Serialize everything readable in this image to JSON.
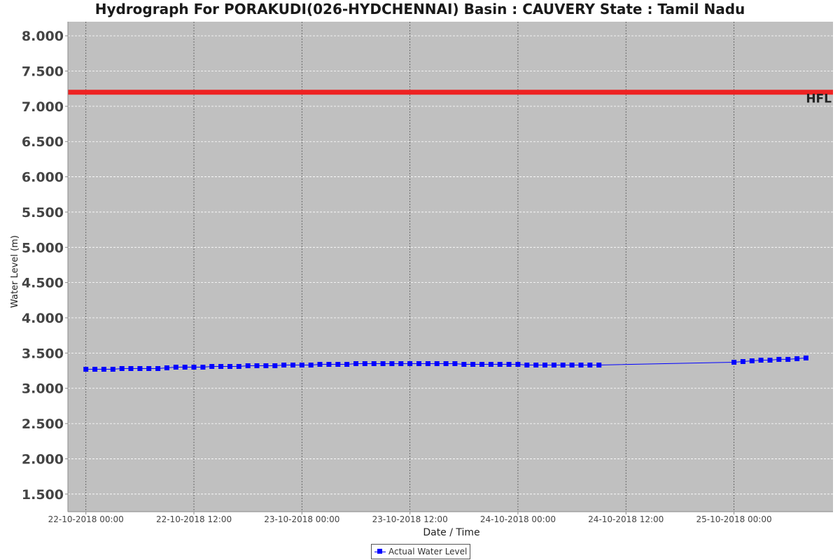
{
  "chart_data": {
    "type": "line",
    "title": "Hydrograph For PORAKUDI(026-HYDCHENNAI) Basin : CAUVERY State : Tamil Nadu",
    "xlabel": "Date / Time",
    "ylabel": "Water Level (m)",
    "ylim": [
      1.25,
      8.2
    ],
    "yticks": [
      "1.500",
      "2.000",
      "2.500",
      "3.000",
      "3.500",
      "4.000",
      "4.500",
      "5.000",
      "5.500",
      "6.000",
      "6.500",
      "7.000",
      "7.500",
      "8.000"
    ],
    "xticks": [
      "22-10-2018 00:00",
      "22-10-2018 12:00",
      "23-10-2018 00:00",
      "23-10-2018 12:00",
      "24-10-2018 00:00",
      "24-10-2018 12:00",
      "25-10-2018 00:00"
    ],
    "xlim": [
      "21-10-2018 22:00",
      "25-10-2018 11:00"
    ],
    "grid": true,
    "legend_position": "bottom",
    "hfl": {
      "label": "HFL",
      "value": 7.2,
      "color": "#ee2222"
    },
    "series": [
      {
        "name": "Actual Water Level",
        "color": "#0000ff",
        "segments": [
          {
            "start": "22-10-2018 00:00",
            "interval_hours": 1,
            "values": [
              3.27,
              3.27,
              3.27,
              3.27,
              3.28,
              3.28,
              3.28,
              3.28,
              3.28,
              3.29,
              3.3,
              3.3,
              3.3,
              3.3,
              3.31,
              3.31,
              3.31,
              3.31,
              3.32,
              3.32,
              3.32,
              3.32,
              3.33,
              3.33,
              3.33,
              3.33,
              3.34,
              3.34,
              3.34,
              3.34,
              3.35,
              3.35,
              3.35,
              3.35,
              3.35,
              3.35,
              3.35,
              3.35,
              3.35,
              3.35,
              3.35,
              3.35,
              3.34,
              3.34,
              3.34,
              3.34,
              3.34,
              3.34,
              3.34,
              3.33,
              3.33,
              3.33,
              3.33,
              3.33,
              3.33,
              3.33,
              3.33,
              3.33
            ]
          },
          {
            "start": "25-10-2018 00:00",
            "interval_hours": 1,
            "values": [
              3.37,
              3.38,
              3.39,
              3.4,
              3.4,
              3.41,
              3.41,
              3.42,
              3.43
            ]
          }
        ]
      }
    ]
  }
}
